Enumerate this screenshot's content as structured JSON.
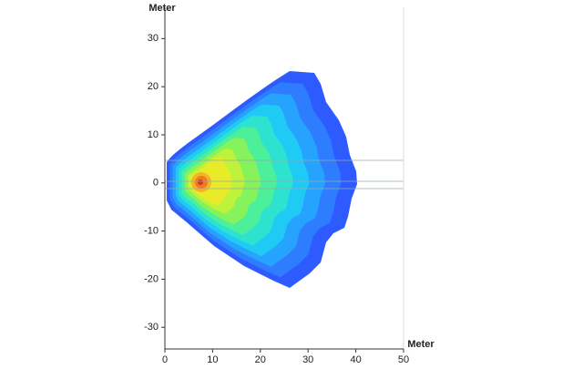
{
  "chart_data": {
    "type": "contour",
    "y_label": "Meter",
    "x_label": "Meter",
    "xlim": [
      0,
      50
    ],
    "xticks": [
      0,
      10,
      20,
      30,
      40,
      50
    ],
    "ylim": [
      -34.5,
      36.5
    ],
    "yticks": [
      30,
      20,
      10,
      0,
      -10,
      -20,
      -30
    ]
  }
}
